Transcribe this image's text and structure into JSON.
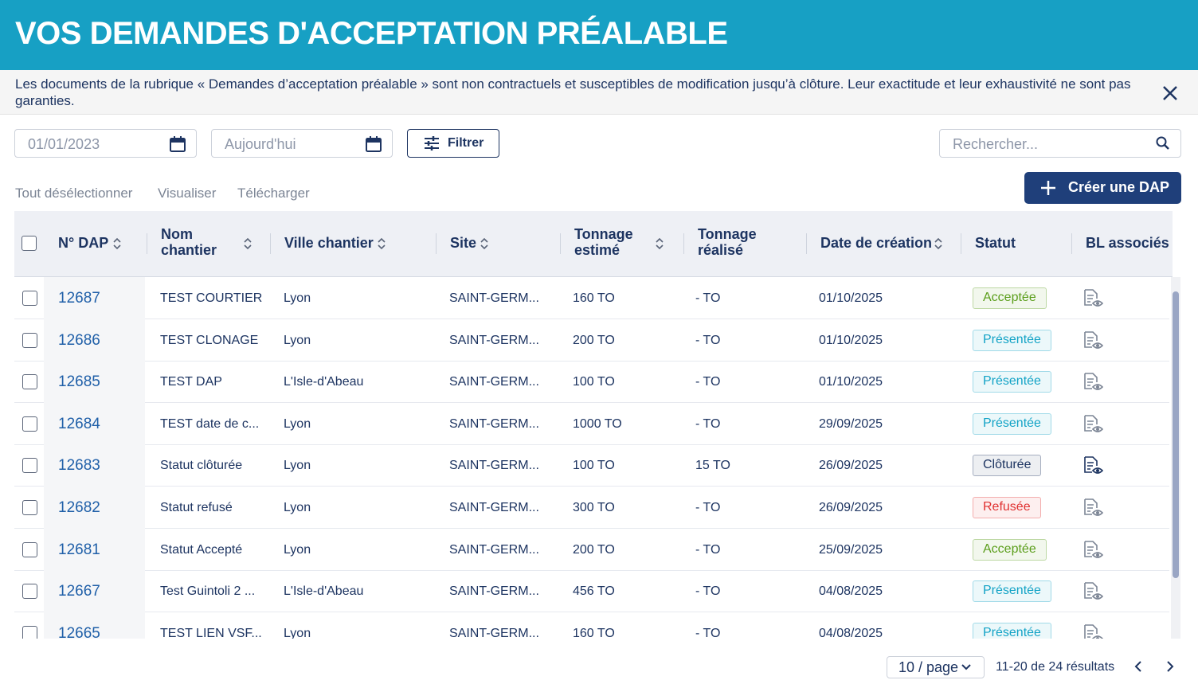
{
  "header": {
    "title": "VOS DEMANDES D'ACCEPTATION PRÉALABLE"
  },
  "notice": {
    "text": "Les documents de la rubrique « Demandes d’acceptation préalable » sont non contractuels et susceptibles de modification jusqu’à clôture. Leur exactitude et leur exhaustivité ne sont pas garanties."
  },
  "filters": {
    "start_date": "01/01/2023",
    "end_date": "Aujourd'hui",
    "filter_button": "Filtrer",
    "search_placeholder": "Rechercher..."
  },
  "actions": {
    "deselect_all": "Tout désélectionner",
    "view": "Visualiser",
    "download": "Télécharger",
    "create": "Créer une DAP"
  },
  "table": {
    "columns": [
      {
        "label": "N° DAP",
        "sortable": true
      },
      {
        "label": "Nom chantier",
        "sortable": true
      },
      {
        "label": "Ville chantier",
        "sortable": true
      },
      {
        "label": "Site",
        "sortable": true
      },
      {
        "label": "Tonnage estimé",
        "sortable": true
      },
      {
        "label": "Tonnage réalisé",
        "sortable": false
      },
      {
        "label": "Date de création",
        "sortable": true
      },
      {
        "label": "Statut",
        "sortable": false
      },
      {
        "label": "BL associés",
        "sortable": false
      }
    ],
    "rows": [
      {
        "id": "12687",
        "name": "TEST COURTIER",
        "city": "Lyon",
        "site": "SAINT-GERM...",
        "estimated": "160 TO",
        "actual": "- TO",
        "created": "01/10/2025",
        "status": "Acceptée",
        "status_color": "#5b9e1b"
      },
      {
        "id": "12686",
        "name": "TEST CLONAGE",
        "city": "Lyon",
        "site": "SAINT-GERM...",
        "estimated": "200 TO",
        "actual": "- TO",
        "created": "01/10/2025",
        "status": "Présentée",
        "status_color": "#13a3c6"
      },
      {
        "id": "12685",
        "name": "TEST DAP",
        "city": "L'Isle-d'Abeau",
        "site": "SAINT-GERM...",
        "estimated": "100 TO",
        "actual": "- TO",
        "created": "01/10/2025",
        "status": "Présentée",
        "status_color": "#13a3c6"
      },
      {
        "id": "12684",
        "name": "TEST date de c...",
        "city": "Lyon",
        "site": "SAINT-GERM...",
        "estimated": "1000 TO",
        "actual": "- TO",
        "created": "29/09/2025",
        "status": "Présentée",
        "status_color": "#13a3c6"
      },
      {
        "id": "12683",
        "name": "Statut clôturée",
        "city": "Lyon",
        "site": "SAINT-GERM...",
        "estimated": "100 TO",
        "actual": "15 TO",
        "created": "26/09/2025",
        "status": "Clôturée",
        "status_color": "#1d3461"
      },
      {
        "id": "12682",
        "name": "Statut refusé",
        "city": "Lyon",
        "site": "SAINT-GERM...",
        "estimated": "300 TO",
        "actual": "- TO",
        "created": "26/09/2025",
        "status": "Refusée",
        "status_color": "#e03131"
      },
      {
        "id": "12681",
        "name": "Statut Accepté",
        "city": "Lyon",
        "site": "SAINT-GERM...",
        "estimated": "200 TO",
        "actual": "- TO",
        "created": "25/09/2025",
        "status": "Acceptée",
        "status_color": "#5b9e1b"
      },
      {
        "id": "12667",
        "name": "Test Guintoli 2 ...",
        "city": "L'Isle-d'Abeau",
        "site": "SAINT-GERM...",
        "estimated": "456 TO",
        "actual": "- TO",
        "created": "04/08/2025",
        "status": "Présentée",
        "status_color": "#13a3c6"
      },
      {
        "id": "12665",
        "name": "TEST LIEN VSF...",
        "city": "Lyon",
        "site": "SAINT-GERM...",
        "estimated": "160 TO",
        "actual": "- TO",
        "created": "04/08/2025",
        "status": "Présentée",
        "status_color": "#13a3c6"
      }
    ]
  },
  "pagination": {
    "page_size": "10 / page",
    "summary": "11-20 de 24 résultats"
  }
}
